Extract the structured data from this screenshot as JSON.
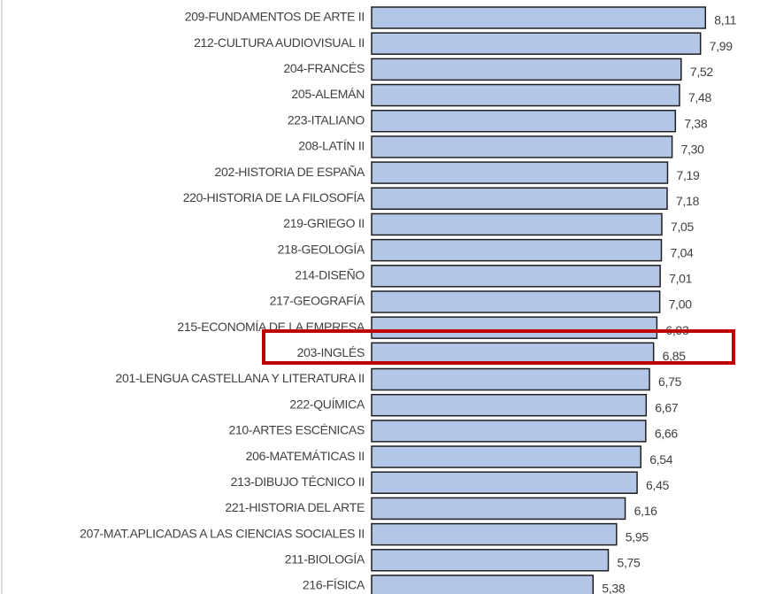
{
  "chart_data": {
    "type": "barh",
    "categories": [
      "209-FUNDAMENTOS DE ARTE II",
      "212-CULTURA AUDIOVISUAL II",
      "204-FRANCÉS",
      "205-ALEMÁN",
      "223-ITALIANO",
      "208-LATÍN II",
      "202-HISTORIA DE ESPAÑA",
      "220-HISTORIA DE LA FILOSOFÍA",
      "219-GRIEGO II",
      "218-GEOLOGÍA",
      "214-DISEÑO",
      "217-GEOGRAFÍA",
      "215-ECONOMÍA DE LA EMPRESA",
      "203-INGLÉS",
      "201-LENGUA CASTELLANA Y LITERATURA II",
      "222-QUÍMICA",
      "210-ARTES ESCÉNICAS",
      "206-MATEMÁTICAS II",
      "213-DIBUJO TÉCNICO II",
      "221-HISTORIA DEL ARTE",
      "207-MAT.APLICADAS A LAS CIENCIAS SOCIALES II",
      "211-BIOLOGÍA",
      "216-FÍSICA"
    ],
    "values": [
      8.11,
      7.99,
      7.52,
      7.48,
      7.38,
      7.3,
      7.19,
      7.18,
      7.05,
      7.04,
      7.01,
      7.0,
      6.93,
      6.85,
      6.75,
      6.67,
      6.66,
      6.54,
      6.45,
      6.16,
      5.95,
      5.75,
      5.38
    ],
    "value_labels": [
      "8,11",
      "7,99",
      "7,52",
      "7,48",
      "7,38",
      "7,30",
      "7,19",
      "7,18",
      "7,05",
      "7,04",
      "7,01",
      "7,00",
      "6,93",
      "6,85",
      "6,75",
      "6,67",
      "6,66",
      "6,54",
      "6,45",
      "6,16",
      "5,95",
      "5,75",
      "5,38"
    ],
    "color": "#b4c6e7",
    "xlim": [
      0,
      9.63
    ]
  }
}
